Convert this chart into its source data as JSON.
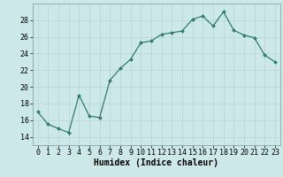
{
  "x": [
    0,
    1,
    2,
    3,
    4,
    5,
    6,
    7,
    8,
    9,
    10,
    11,
    12,
    13,
    14,
    15,
    16,
    17,
    18,
    19,
    20,
    21,
    22,
    23
  ],
  "y": [
    17,
    15.5,
    15,
    14.5,
    19,
    16.5,
    16.3,
    20.8,
    22.2,
    23.3,
    25.3,
    25.5,
    26.3,
    26.5,
    26.7,
    28.1,
    28.5,
    27.3,
    29.0,
    26.8,
    26.2,
    25.9,
    23.8,
    23.0
  ],
  "xlabel": "Humidex (Indice chaleur)",
  "xlim": [
    -0.5,
    23.5
  ],
  "ylim": [
    13,
    30
  ],
  "yticks": [
    14,
    16,
    18,
    20,
    22,
    24,
    26,
    28
  ],
  "xticks": [
    0,
    1,
    2,
    3,
    4,
    5,
    6,
    7,
    8,
    9,
    10,
    11,
    12,
    13,
    14,
    15,
    16,
    17,
    18,
    19,
    20,
    21,
    22,
    23
  ],
  "line_color": "#2e7d6e",
  "marker_color": "#2e7d6e",
  "bg_color": "#cce8e8",
  "grid_color": "#b8d4d4",
  "tick_fontsize": 6,
  "label_fontsize": 7
}
